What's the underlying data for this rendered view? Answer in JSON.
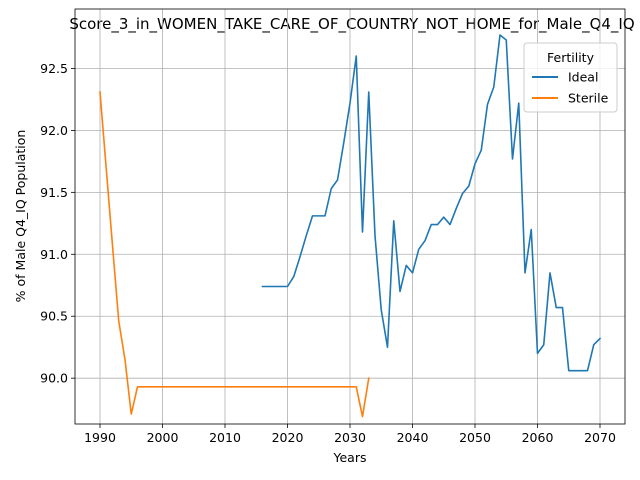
{
  "chart_data": {
    "type": "line",
    "title": "Score_3_in_WOMEN_TAKE_CARE_OF_COUNTRY_NOT_HOME_for_Male_Q4_IQ",
    "xlabel": "Years",
    "ylabel": "% of Male Q4_IQ Population",
    "xlim": [
      1986,
      2074
    ],
    "ylim": [
      89.63,
      92.98
    ],
    "xticks": [
      1990,
      2000,
      2010,
      2020,
      2030,
      2040,
      2050,
      2060,
      2070
    ],
    "yticks": [
      90.0,
      90.5,
      91.0,
      91.5,
      92.0,
      92.5
    ],
    "ytick_labels": [
      "90.0",
      "90.5",
      "91.0",
      "91.5",
      "92.0",
      "92.5"
    ],
    "grid": true,
    "legend": {
      "title": "Fertility",
      "placement": "top-right"
    },
    "series": [
      {
        "name": "Ideal",
        "color": "#1f77b4",
        "x": [
          2016,
          2017,
          2018,
          2019,
          2020,
          2021,
          2022,
          2023,
          2024,
          2025,
          2026,
          2027,
          2028,
          2029,
          2030,
          2031,
          2032,
          2033,
          2034,
          2035,
          2036,
          2037,
          2038,
          2039,
          2040,
          2041,
          2042,
          2043,
          2044,
          2045,
          2046,
          2047,
          2048,
          2049,
          2050,
          2051,
          2052,
          2053,
          2054,
          2055,
          2056,
          2057,
          2058,
          2059,
          2060,
          2061,
          2062,
          2063,
          2064,
          2065,
          2066,
          2067,
          2068,
          2069,
          2070
        ],
        "y": [
          90.74,
          90.74,
          90.74,
          90.74,
          90.74,
          90.82,
          90.98,
          91.15,
          91.31,
          91.31,
          91.31,
          91.53,
          91.6,
          91.9,
          92.22,
          92.6,
          91.18,
          92.31,
          91.15,
          90.55,
          90.25,
          91.27,
          90.7,
          90.91,
          90.85,
          91.04,
          91.11,
          91.24,
          91.24,
          91.3,
          91.24,
          91.37,
          91.49,
          91.55,
          91.73,
          91.84,
          92.21,
          92.35,
          92.77,
          92.73,
          91.77,
          92.22,
          90.85,
          91.2,
          90.2,
          90.27,
          90.85,
          90.57,
          90.57,
          90.06,
          90.06,
          90.06,
          90.06,
          90.27,
          90.32
        ]
      },
      {
        "name": "Sterile",
        "color": "#ff7f0e",
        "x": [
          1990,
          1991,
          1992,
          1993,
          1994,
          1995,
          1996,
          1997,
          1998,
          1999,
          2000,
          2001,
          2002,
          2003,
          2004,
          2005,
          2006,
          2007,
          2008,
          2009,
          2010,
          2011,
          2012,
          2013,
          2014,
          2015,
          2016,
          2017,
          2018,
          2019,
          2020,
          2021,
          2022,
          2023,
          2024,
          2025,
          2026,
          2027,
          2028,
          2029,
          2030,
          2031,
          2032,
          2033
        ],
        "y": [
          92.31,
          91.69,
          91.07,
          90.46,
          90.15,
          89.71,
          89.93,
          89.93,
          89.93,
          89.93,
          89.93,
          89.93,
          89.93,
          89.93,
          89.93,
          89.93,
          89.93,
          89.93,
          89.93,
          89.93,
          89.93,
          89.93,
          89.93,
          89.93,
          89.93,
          89.93,
          89.93,
          89.93,
          89.93,
          89.93,
          89.93,
          89.93,
          89.93,
          89.93,
          89.93,
          89.93,
          89.93,
          89.93,
          89.93,
          89.93,
          89.93,
          89.93,
          89.69,
          90.0
        ]
      }
    ]
  }
}
